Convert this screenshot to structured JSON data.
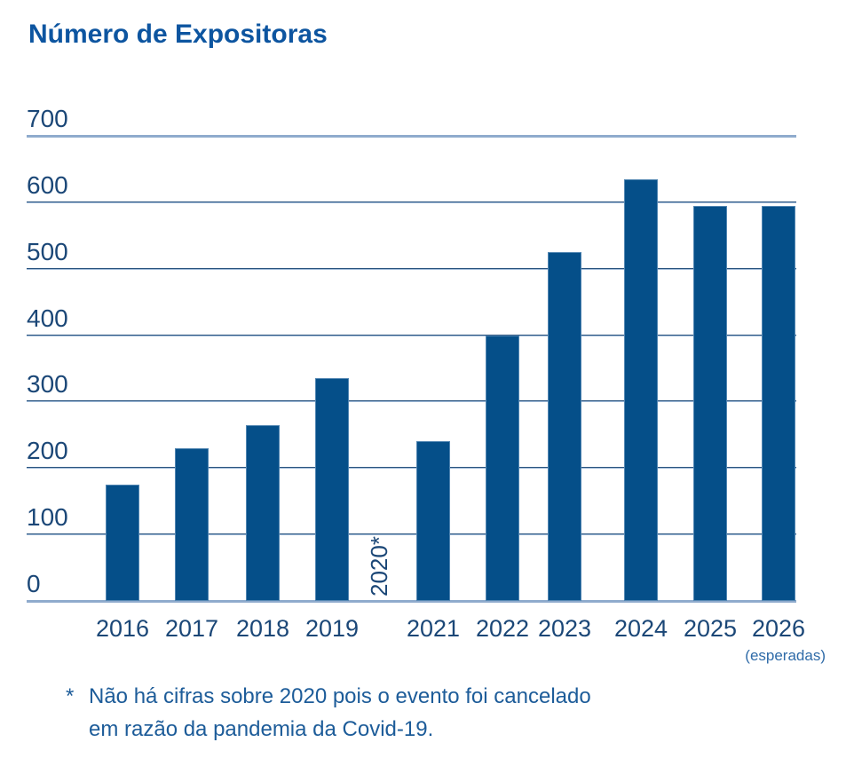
{
  "chart_data": {
    "type": "bar",
    "title": "Número de Expositoras",
    "categories": [
      "2016",
      "2017",
      "2018",
      "2019",
      "2020",
      "2021",
      "2022",
      "2023",
      "2024",
      "2025",
      "2026"
    ],
    "values": [
      175,
      230,
      265,
      335,
      null,
      240,
      400,
      525,
      635,
      595,
      595
    ],
    "xlabel": "",
    "ylabel": "",
    "ylim": [
      0,
      700
    ],
    "yticks": [
      0,
      100,
      200,
      300,
      400,
      500,
      600,
      700
    ],
    "grid": "horizontal",
    "legend": "none",
    "missing_category_label": "2020*",
    "last_category_note": "(esperadas)",
    "colors": {
      "bar": "#054f89",
      "bar_edge": "#9db8d6",
      "gridline_dark": "#29537e",
      "gridline_light": "#9db8d6",
      "axis_line": "#8fabcd",
      "title_text": "#0d55a0",
      "axis_label_text": "#1b4777",
      "footnote_text": "#1d5c99",
      "note_text": "#2f6ba8",
      "background": "#ffffff"
    }
  },
  "footnote": {
    "marker": "*",
    "line1": "Não há cifras sobre 2020 pois o evento foi cancelado",
    "line2": "em razão da pandemia da Covid-19."
  }
}
